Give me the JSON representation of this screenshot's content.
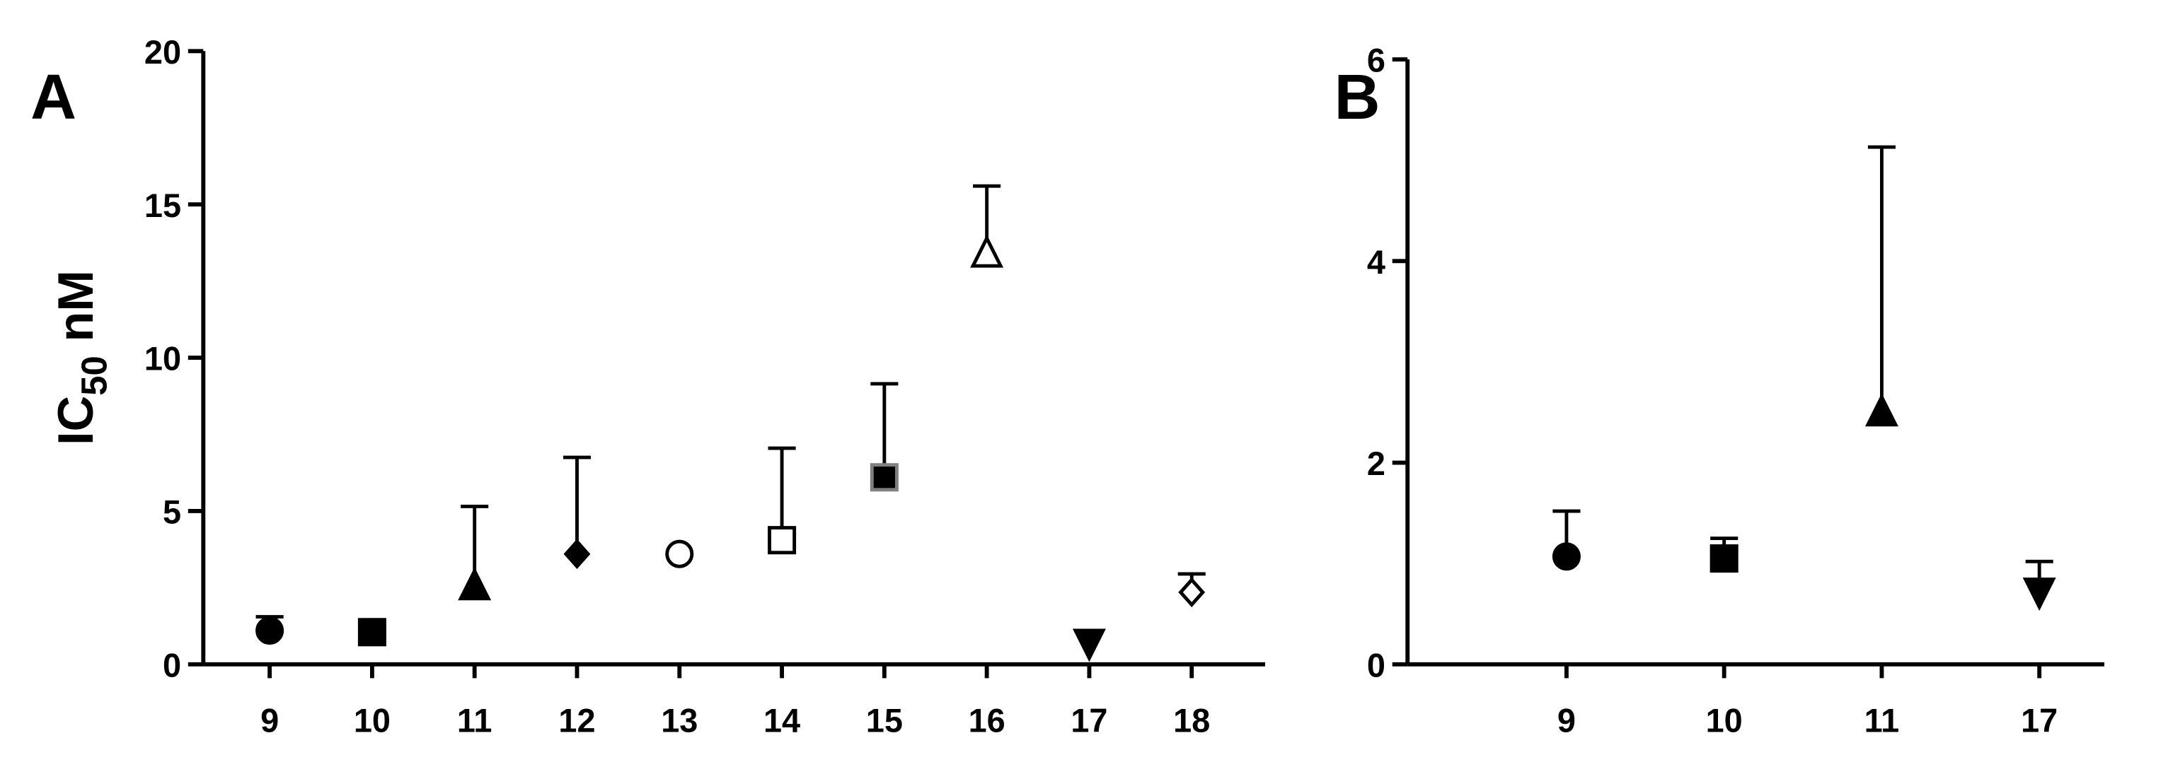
{
  "chart_data": [
    {
      "type": "scatter",
      "panel_label": "A",
      "y_label": [
        "IC",
        "50",
        "nM"
      ],
      "categories": [
        "9",
        "10",
        "11",
        "12",
        "13",
        "14",
        "15",
        "16",
        "17",
        "18"
      ],
      "ylim": [
        0,
        20
      ],
      "yticks": [
        0,
        5,
        10,
        15,
        20
      ],
      "series": [
        {
          "values": [
            1.1,
            1.05,
            2.55,
            3.6,
            3.6,
            4.05,
            6.1,
            13.4,
            0.7,
            2.35
          ],
          "errors": [
            0.45,
            null,
            2.6,
            3.15,
            null,
            3.0,
            3.05,
            2.2,
            null,
            0.6
          ],
          "markers": [
            {
              "shape": "circle",
              "fill": "#000000",
              "stroke": "#000000"
            },
            {
              "shape": "square",
              "fill": "#000000",
              "stroke": "#000000"
            },
            {
              "shape": "triangle",
              "fill": "#000000",
              "stroke": "#000000"
            },
            {
              "shape": "diamond",
              "fill": "#000000",
              "stroke": "#000000"
            },
            {
              "shape": "circle",
              "fill": "#ffffff",
              "stroke": "#000000"
            },
            {
              "shape": "square",
              "fill": "#ffffff",
              "stroke": "#000000"
            },
            {
              "shape": "square",
              "fill": "#000000",
              "stroke": "#808080"
            },
            {
              "shape": "triangle",
              "fill": "#ffffff",
              "stroke": "#000000"
            },
            {
              "shape": "triangle-down",
              "fill": "#000000",
              "stroke": "#000000"
            },
            {
              "shape": "diamond",
              "fill": "#ffffff",
              "stroke": "#000000"
            }
          ]
        }
      ]
    },
    {
      "type": "scatter",
      "panel_label": "B",
      "categories": [
        "9",
        "10",
        "11",
        "17"
      ],
      "ylim": [
        0,
        6
      ],
      "yticks": [
        0,
        2,
        4,
        6
      ],
      "series": [
        {
          "values": [
            1.07,
            1.05,
            2.5,
            0.72
          ],
          "errors": [
            0.45,
            0.2,
            2.63,
            0.3
          ],
          "markers": [
            {
              "shape": "circle",
              "fill": "#000000",
              "stroke": "#000000"
            },
            {
              "shape": "square",
              "fill": "#000000",
              "stroke": "#000000"
            },
            {
              "shape": "triangle",
              "fill": "#000000",
              "stroke": "#000000"
            },
            {
              "shape": "triangle-down",
              "fill": "#000000",
              "stroke": "#000000"
            }
          ]
        }
      ]
    }
  ]
}
